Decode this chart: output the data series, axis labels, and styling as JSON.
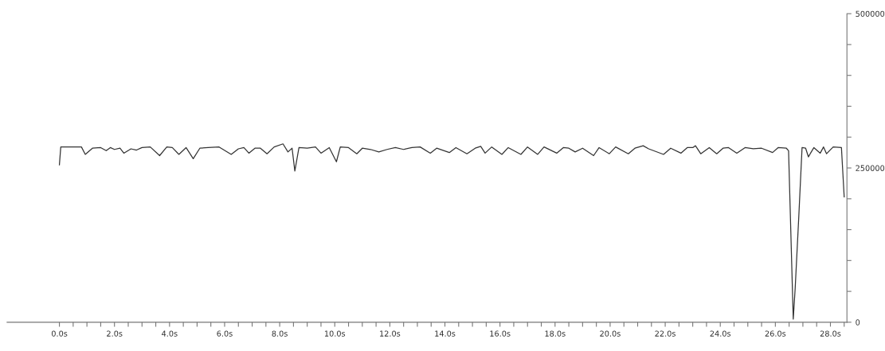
{
  "chart_data": {
    "type": "line",
    "color": "#333333",
    "line_style": "solid",
    "marker": "none",
    "grid": false,
    "legend": false,
    "x": [
      0.0,
      0.05,
      0.8,
      0.94,
      1.2,
      1.5,
      1.7,
      1.85,
      2.0,
      2.2,
      2.34,
      2.6,
      2.8,
      3.0,
      3.3,
      3.64,
      3.9,
      4.1,
      4.34,
      4.6,
      4.86,
      5.1,
      5.4,
      5.8,
      6.24,
      6.5,
      6.7,
      6.88,
      7.1,
      7.3,
      7.54,
      7.8,
      8.12,
      8.3,
      8.45,
      8.55,
      8.7,
      9.0,
      9.3,
      9.5,
      9.8,
      10.06,
      10.2,
      10.5,
      10.8,
      11.0,
      11.3,
      11.6,
      11.9,
      12.2,
      12.5,
      12.8,
      13.1,
      13.47,
      13.7,
      14.16,
      14.4,
      14.8,
      15.1,
      15.3,
      15.46,
      15.7,
      16.07,
      16.3,
      16.76,
      17.0,
      17.37,
      17.6,
      18.06,
      18.3,
      18.5,
      18.73,
      19.0,
      19.4,
      19.6,
      19.97,
      20.2,
      20.66,
      20.9,
      21.2,
      21.4,
      21.94,
      22.2,
      22.57,
      22.8,
      23.0,
      23.1,
      23.29,
      23.6,
      23.87,
      24.1,
      24.3,
      24.6,
      24.9,
      25.2,
      25.5,
      25.9,
      26.1,
      26.4,
      26.48,
      26.65,
      26.72,
      26.85,
      26.97,
      27.1,
      27.2,
      27.4,
      27.63,
      27.75,
      27.86,
      28.1,
      28.4,
      28.5
    ],
    "values": [
      255000,
      284000,
      284000,
      272000,
      282000,
      283000,
      278000,
      283000,
      280000,
      282000,
      274000,
      281000,
      279000,
      283000,
      284000,
      270000,
      284000,
      283000,
      272000,
      283000,
      265000,
      282000,
      283000,
      284000,
      272000,
      281000,
      283000,
      274000,
      282000,
      282000,
      273000,
      284000,
      289000,
      276000,
      282000,
      245000,
      283000,
      282000,
      284000,
      274000,
      283000,
      260000,
      284000,
      283000,
      273000,
      282000,
      280000,
      276000,
      280000,
      283000,
      280000,
      283000,
      284000,
      274000,
      282000,
      275000,
      283000,
      273000,
      282000,
      285000,
      274000,
      284000,
      272000,
      283000,
      272000,
      284000,
      272000,
      284000,
      274000,
      283000,
      282000,
      276000,
      282000,
      270000,
      283000,
      273000,
      284000,
      273000,
      282000,
      286000,
      281000,
      272000,
      282000,
      274000,
      283000,
      283000,
      286000,
      273000,
      283000,
      273000,
      282000,
      283000,
      274000,
      283000,
      281000,
      282000,
      275000,
      283000,
      282000,
      278000,
      5000,
      55000,
      170000,
      283000,
      282000,
      268000,
      283000,
      274000,
      284000,
      273000,
      284000,
      283000,
      203000
    ],
    "xlim": [
      -1.9,
      28.6
    ],
    "xticks": [
      {
        "value": 0,
        "label": "0.0s"
      },
      {
        "value": 0.5,
        "label": null
      },
      {
        "value": 1,
        "label": null
      },
      {
        "value": 1.5,
        "label": null
      },
      {
        "value": 2,
        "label": "2.0s"
      },
      {
        "value": 2.5,
        "label": null
      },
      {
        "value": 3,
        "label": null
      },
      {
        "value": 3.5,
        "label": null
      },
      {
        "value": 4,
        "label": "4.0s"
      },
      {
        "value": 4.5,
        "label": null
      },
      {
        "value": 5,
        "label": null
      },
      {
        "value": 5.5,
        "label": null
      },
      {
        "value": 6,
        "label": "6.0s"
      },
      {
        "value": 6.5,
        "label": null
      },
      {
        "value": 7,
        "label": null
      },
      {
        "value": 7.5,
        "label": null
      },
      {
        "value": 8,
        "label": "8.0s"
      },
      {
        "value": 8.5,
        "label": null
      },
      {
        "value": 9,
        "label": null
      },
      {
        "value": 9.5,
        "label": null
      },
      {
        "value": 10,
        "label": "10.0s"
      },
      {
        "value": 10.5,
        "label": null
      },
      {
        "value": 11,
        "label": null
      },
      {
        "value": 11.5,
        "label": null
      },
      {
        "value": 12,
        "label": "12.0s"
      },
      {
        "value": 12.5,
        "label": null
      },
      {
        "value": 13,
        "label": null
      },
      {
        "value": 13.5,
        "label": null
      },
      {
        "value": 14,
        "label": "14.0s"
      },
      {
        "value": 14.5,
        "label": null
      },
      {
        "value": 15,
        "label": null
      },
      {
        "value": 15.5,
        "label": null
      },
      {
        "value": 16,
        "label": "16.0s"
      },
      {
        "value": 16.5,
        "label": null
      },
      {
        "value": 17,
        "label": null
      },
      {
        "value": 17.5,
        "label": null
      },
      {
        "value": 18,
        "label": "18.0s"
      },
      {
        "value": 18.5,
        "label": null
      },
      {
        "value": 19,
        "label": null
      },
      {
        "value": 19.5,
        "label": null
      },
      {
        "value": 20,
        "label": "20.0s"
      },
      {
        "value": 20.5,
        "label": null
      },
      {
        "value": 21,
        "label": null
      },
      {
        "value": 21.5,
        "label": null
      },
      {
        "value": 22,
        "label": "22.0s"
      },
      {
        "value": 22.5,
        "label": null
      },
      {
        "value": 23,
        "label": null
      },
      {
        "value": 23.5,
        "label": null
      },
      {
        "value": 24,
        "label": "24.0s"
      },
      {
        "value": 24.5,
        "label": null
      },
      {
        "value": 25,
        "label": null
      },
      {
        "value": 25.5,
        "label": null
      },
      {
        "value": 26,
        "label": "26.0s"
      },
      {
        "value": 26.5,
        "label": null
      },
      {
        "value": 27,
        "label": null
      },
      {
        "value": 27.5,
        "label": null
      },
      {
        "value": 28,
        "label": "28.0s"
      },
      {
        "value": 28.5,
        "label": null
      }
    ],
    "ylim": [
      0,
      500000
    ],
    "yticks": [
      0,
      {
        "value": 50000,
        "label": null
      },
      {
        "value": 100000,
        "label": null
      },
      {
        "value": 150000,
        "label": null
      },
      {
        "value": 200000,
        "label": null
      },
      250000,
      {
        "value": 300000,
        "label": null
      },
      {
        "value": 350000,
        "label": null
      },
      {
        "value": 400000,
        "label": null
      },
      {
        "value": 450000,
        "label": null
      },
      500000
    ]
  }
}
